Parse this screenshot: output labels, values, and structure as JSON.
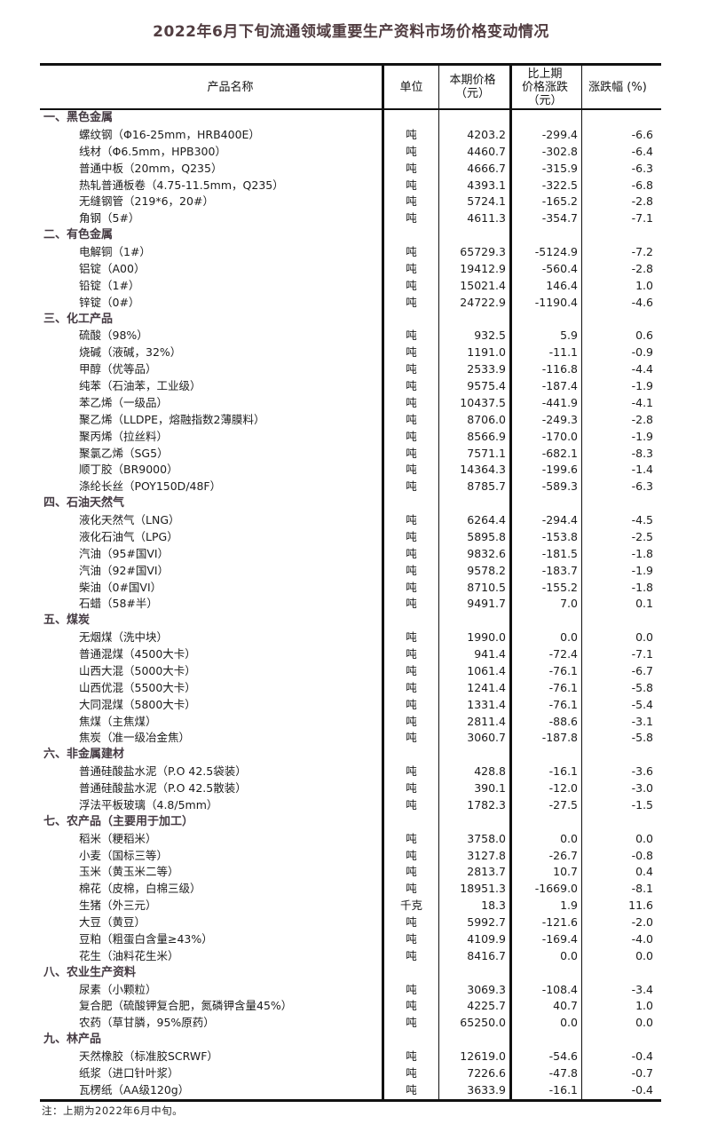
{
  "page": {
    "title": "2022年6月下旬流通领域重要生产资料市场价格变动情况",
    "note": "注：上期为2022年6月中旬。"
  },
  "colors": {
    "title": "#523e42",
    "section": "#453b43",
    "body_text": "#1b1b1b",
    "border": "#111111"
  },
  "table": {
    "headers": {
      "product": "产品名称",
      "unit": "单位",
      "price_line1": "本期价格",
      "price_line2": "（元）",
      "change_line1": "比上期",
      "change_line2": "价格涨跌",
      "change_line3": "（元）",
      "pct": "涨跌幅 (%)"
    },
    "sections": [
      {
        "name": "一、黑色金属",
        "items": [
          {
            "name": "螺纹钢（Φ16-25mm，HRB400E）",
            "unit": "吨",
            "price": "4203.2",
            "change": "-299.4",
            "pct": "-6.6"
          },
          {
            "name": "线材（Φ6.5mm，HPB300）",
            "unit": "吨",
            "price": "4460.7",
            "change": "-302.8",
            "pct": "-6.4"
          },
          {
            "name": "普通中板（20mm，Q235）",
            "unit": "吨",
            "price": "4666.7",
            "change": "-315.9",
            "pct": "-6.3"
          },
          {
            "name": "热轧普通板卷（4.75-11.5mm，Q235）",
            "unit": "吨",
            "price": "4393.1",
            "change": "-322.5",
            "pct": "-6.8"
          },
          {
            "name": "无缝钢管（219*6，20#）",
            "unit": "吨",
            "price": "5724.1",
            "change": "-165.2",
            "pct": "-2.8"
          },
          {
            "name": "角钢（5#）",
            "unit": "吨",
            "price": "4611.3",
            "change": "-354.7",
            "pct": "-7.1"
          }
        ]
      },
      {
        "name": "二、有色金属",
        "items": [
          {
            "name": "电解铜（1#）",
            "unit": "吨",
            "price": "65729.3",
            "change": "-5124.9",
            "pct": "-7.2"
          },
          {
            "name": "铝锭（A00）",
            "unit": "吨",
            "price": "19412.9",
            "change": "-560.4",
            "pct": "-2.8"
          },
          {
            "name": "铅锭（1#）",
            "unit": "吨",
            "price": "15021.4",
            "change": "146.4",
            "pct": "1.0"
          },
          {
            "name": "锌锭（0#）",
            "unit": "吨",
            "price": "24722.9",
            "change": "-1190.4",
            "pct": "-4.6"
          }
        ]
      },
      {
        "name": "三、化工产品",
        "items": [
          {
            "name": "硫酸（98%）",
            "unit": "吨",
            "price": "932.5",
            "change": "5.9",
            "pct": "0.6"
          },
          {
            "name": "烧碱（液碱，32%）",
            "unit": "吨",
            "price": "1191.0",
            "change": "-11.1",
            "pct": "-0.9"
          },
          {
            "name": "甲醇（优等品）",
            "unit": "吨",
            "price": "2533.9",
            "change": "-116.8",
            "pct": "-4.4"
          },
          {
            "name": "纯苯（石油苯，工业级）",
            "unit": "吨",
            "price": "9575.4",
            "change": "-187.4",
            "pct": "-1.9"
          },
          {
            "name": "苯乙烯（一级品）",
            "unit": "吨",
            "price": "10437.5",
            "change": "-441.9",
            "pct": "-4.1"
          },
          {
            "name": "聚乙烯（LLDPE，熔融指数2薄膜料）",
            "unit": "吨",
            "price": "8706.0",
            "change": "-249.3",
            "pct": "-2.8"
          },
          {
            "name": "聚丙烯（拉丝料）",
            "unit": "吨",
            "price": "8566.9",
            "change": "-170.0",
            "pct": "-1.9"
          },
          {
            "name": "聚氯乙烯（SG5）",
            "unit": "吨",
            "price": "7571.1",
            "change": "-682.1",
            "pct": "-8.3"
          },
          {
            "name": "顺丁胶（BR9000）",
            "unit": "吨",
            "price": "14364.3",
            "change": "-199.6",
            "pct": "-1.4"
          },
          {
            "name": "涤纶长丝（POY150D/48F）",
            "unit": "吨",
            "price": "8785.7",
            "change": "-589.3",
            "pct": "-6.3"
          }
        ]
      },
      {
        "name": "四、石油天然气",
        "items": [
          {
            "name": "液化天然气（LNG）",
            "unit": "吨",
            "price": "6264.4",
            "change": "-294.4",
            "pct": "-4.5"
          },
          {
            "name": "液化石油气（LPG）",
            "unit": "吨",
            "price": "5895.8",
            "change": "-153.8",
            "pct": "-2.5"
          },
          {
            "name": "汽油（95#国VI）",
            "unit": "吨",
            "price": "9832.6",
            "change": "-181.5",
            "pct": "-1.8"
          },
          {
            "name": "汽油（92#国VI）",
            "unit": "吨",
            "price": "9578.2",
            "change": "-183.7",
            "pct": "-1.9"
          },
          {
            "name": "柴油（0#国VI）",
            "unit": "吨",
            "price": "8710.5",
            "change": "-155.2",
            "pct": "-1.8"
          },
          {
            "name": "石蜡（58#半）",
            "unit": "吨",
            "price": "9491.7",
            "change": "7.0",
            "pct": "0.1"
          }
        ]
      },
      {
        "name": "五、煤炭",
        "items": [
          {
            "name": "无烟煤（洗中块）",
            "unit": "吨",
            "price": "1990.0",
            "change": "0.0",
            "pct": "0.0"
          },
          {
            "name": "普通混煤（4500大卡）",
            "unit": "吨",
            "price": "941.4",
            "change": "-72.4",
            "pct": "-7.1"
          },
          {
            "name": "山西大混（5000大卡）",
            "unit": "吨",
            "price": "1061.4",
            "change": "-76.1",
            "pct": "-6.7"
          },
          {
            "name": "山西优混（5500大卡）",
            "unit": "吨",
            "price": "1241.4",
            "change": "-76.1",
            "pct": "-5.8"
          },
          {
            "name": "大同混煤（5800大卡）",
            "unit": "吨",
            "price": "1331.4",
            "change": "-76.1",
            "pct": "-5.4"
          },
          {
            "name": "焦煤（主焦煤）",
            "unit": "吨",
            "price": "2811.4",
            "change": "-88.6",
            "pct": "-3.1"
          },
          {
            "name": "焦炭（准一级冶金焦）",
            "unit": "吨",
            "price": "3060.7",
            "change": "-187.8",
            "pct": "-5.8"
          }
        ]
      },
      {
        "name": "六、非金属建材",
        "items": [
          {
            "name": "普通硅酸盐水泥（P.O 42.5袋装）",
            "unit": "吨",
            "price": "428.8",
            "change": "-16.1",
            "pct": "-3.6"
          },
          {
            "name": "普通硅酸盐水泥（P.O 42.5散装）",
            "unit": "吨",
            "price": "390.1",
            "change": "-12.0",
            "pct": "-3.0"
          },
          {
            "name": "浮法平板玻璃（4.8/5mm）",
            "unit": "吨",
            "price": "1782.3",
            "change": "-27.5",
            "pct": "-1.5"
          }
        ]
      },
      {
        "name": "七、农产品（主要用于加工）",
        "items": [
          {
            "name": "稻米（粳稻米）",
            "unit": "吨",
            "price": "3758.0",
            "change": "0.0",
            "pct": "0.0"
          },
          {
            "name": "小麦（国标三等）",
            "unit": "吨",
            "price": "3127.8",
            "change": "-26.7",
            "pct": "-0.8"
          },
          {
            "name": "玉米（黄玉米二等）",
            "unit": "吨",
            "price": "2813.7",
            "change": "10.7",
            "pct": "0.4"
          },
          {
            "name": "棉花（皮棉，白棉三级）",
            "unit": "吨",
            "price": "18951.3",
            "change": "-1669.0",
            "pct": "-8.1"
          },
          {
            "name": "生猪（外三元）",
            "unit": "千克",
            "price": "18.3",
            "change": "1.9",
            "pct": "11.6"
          },
          {
            "name": "大豆（黄豆）",
            "unit": "吨",
            "price": "5992.7",
            "change": "-121.6",
            "pct": "-2.0"
          },
          {
            "name": "豆粕（粗蛋白含量≥43%）",
            "unit": "吨",
            "price": "4109.9",
            "change": "-169.4",
            "pct": "-4.0"
          },
          {
            "name": "花生（油料花生米）",
            "unit": "吨",
            "price": "8416.7",
            "change": "0.0",
            "pct": "0.0"
          }
        ]
      },
      {
        "name": "八、农业生产资料",
        "items": [
          {
            "name": "尿素（小颗粒）",
            "unit": "吨",
            "price": "3069.3",
            "change": "-108.4",
            "pct": "-3.4"
          },
          {
            "name": "复合肥（硫酸钾复合肥，氮磷钾含量45%）",
            "unit": "吨",
            "price": "4225.7",
            "change": "40.7",
            "pct": "1.0"
          },
          {
            "name": "农药（草甘膦，95%原药）",
            "unit": "吨",
            "price": "65250.0",
            "change": "0.0",
            "pct": "0.0"
          }
        ]
      },
      {
        "name": "九、林产品",
        "items": [
          {
            "name": "天然橡胶（标准胶SCRWF）",
            "unit": "吨",
            "price": "12619.0",
            "change": "-54.6",
            "pct": "-0.4"
          },
          {
            "name": "纸浆（进口针叶浆）",
            "unit": "吨",
            "price": "7226.6",
            "change": "-47.8",
            "pct": "-0.7"
          },
          {
            "name": "瓦楞纸（AA级120g）",
            "unit": "吨",
            "price": "3633.9",
            "change": "-16.1",
            "pct": "-0.4"
          }
        ]
      }
    ]
  }
}
